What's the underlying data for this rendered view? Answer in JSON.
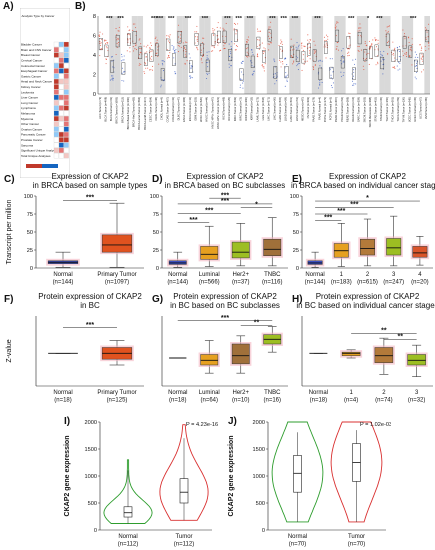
{
  "chart_data": [
    {
      "panel": "A)",
      "type": "table",
      "title": "Analysis Type by Cancer",
      "rows": [
        "Bladder Cancer",
        "Brain and CNS Cancer",
        "Breast Cancer",
        "Cervical Cancer",
        "Colorectal Cancer",
        "Esophageal Cancer",
        "Gastric Cancer",
        "Head and Neck Cancer",
        "Kidney Cancer",
        "Leukemia",
        "Liver Cancer",
        "Lung Cancer",
        "Lymphoma",
        "Melanoma",
        "Myeloma",
        "Other Cancer",
        "Ovarian Cancer",
        "Pancreatic Cancer",
        "Prostate Cancer",
        "Sarcoma",
        "Significant Unique Analyses",
        "Total Unique Analyses"
      ]
    },
    {
      "panel": "B)",
      "type": "scatter",
      "ylabel": "CKAP2 Expression Level (log2 TPM+1)",
      "yticks": [
        "0",
        "2",
        "4",
        "6",
        "8"
      ],
      "xlabels": [
        "ACC.Tumor (n=79)",
        "BLCA.Tumor (n=408)",
        "BLCA.Normal (n=19)",
        "BRCA.Tumor (n=1093)",
        "BRCA.Normal (n=112)",
        "BRCA-Basal.Tumor (n=190)",
        "BRCA-Her2.Tumor (n=82)",
        "BRCA-LumA.Tumor (n=564)",
        "BRCA-LumB.Tumor (n=217)",
        "CESC.Tumor (n=304)",
        "CHOL.Tumor (n=36)",
        "CHOL.Normal (n=9)",
        "COAD.Tumor (n=457)",
        "COAD.Normal (n=41)",
        "DLBC.Tumor (n=47)",
        "ESCA.Tumor (n=184)",
        "ESCA.Normal (n=11)",
        "GBM.Tumor (n=153)",
        "HNSC.Tumor (n=520)",
        "HNSC.Normal (n=44)",
        "HNSC-HPV+.Tumor (n=97)",
        "HNSC-HPV-.Tumor (n=421)",
        "KICH.Tumor (n=66)",
        "KICH.Normal (n=25)",
        "KIRC.Tumor (n=533)",
        "KIRC.Normal (n=72)",
        "KIRP.Tumor (n=290)",
        "KIRP.Normal (n=32)",
        "LAML.Tumor (n=173)",
        "LGG.Tumor (n=516)",
        "LIHC.Tumor (n=371)",
        "LIHC.Normal (n=50)",
        "LUAD.Tumor (n=515)",
        "LUAD.Normal (n=59)",
        "LUSC.Tumor (n=501)",
        "LUSC.Normal (n=51)",
        "MESO.Tumor (n=87)",
        "OV.Tumor (n=303)",
        "PAAD.Tumor (n=178)",
        "PAAD.Normal (n=4)",
        "PCPG.Tumor (n=179)",
        "PCPG.Normal (n=3)",
        "PRAD.Tumor (n=497)",
        "PRAD.Normal (n=52)",
        "READ.Tumor (n=166)",
        "READ.Normal (n=10)",
        "SARC.Tumor (n=259)",
        "SKCM.Tumor (n=103)",
        "SKCM.Metastasis (n=368)",
        "STAD.Tumor (n=415)",
        "STAD.Normal (n=35)",
        "TGCT.Tumor (n=150)",
        "THCA.Tumor (n=501)",
        "THCA.Normal (n=59)",
        "THYM.Tumor (n=120)",
        "UCEC.Tumor (n=545)",
        "UCEC.Normal (n=35)",
        "UCS.Tumor (n=57)",
        "UVM.Tumor (n=80)"
      ],
      "sig_marks": [
        "***",
        "***",
        "***",
        "***",
        "***",
        "***",
        "***",
        "***",
        "***",
        "***",
        "***",
        "***",
        "***",
        "***",
        "***",
        "*",
        "***",
        "***"
      ]
    },
    {
      "panel": "C)",
      "type": "box",
      "title": "Expression of CKAP2\nin BRCA based on sample types",
      "ylabel": "Transcript per million",
      "ylim": [
        0,
        100
      ],
      "yticks": [
        "0",
        "25",
        "50",
        "75",
        "100"
      ],
      "categories": [
        "Normal\n(n=144)",
        "Primary Tumor\n(n=1097)"
      ],
      "colors": [
        "#3b4fc7",
        "#e0521f"
      ],
      "boxes": [
        {
          "min": 1,
          "q1": 6,
          "median": 8,
          "q3": 10,
          "max": 22
        },
        {
          "min": 1,
          "q1": 22,
          "median": 32,
          "q3": 46,
          "max": 90
        }
      ],
      "sig": [
        {
          "label": "***",
          "from": 0,
          "to": 1,
          "y": 94
        }
      ]
    },
    {
      "panel": "D)",
      "type": "box",
      "title": "Expression of CKAP2\nin BRCA based on BC subclasses",
      "ylim": [
        0,
        100
      ],
      "yticks": [
        "0",
        "25",
        "50",
        "75",
        "100"
      ],
      "categories": [
        "Normal\n(n=144)",
        "Luminal\n(n=566)",
        "Her2+\n(n=37)",
        "TNBC\n(n=116)"
      ],
      "colors": [
        "#3b4fc7",
        "#e6a020",
        "#9dbe22",
        "#a0703a"
      ],
      "boxes": [
        {
          "min": 1,
          "q1": 5,
          "median": 7,
          "q3": 10,
          "max": 22
        },
        {
          "min": 2,
          "q1": 12,
          "median": 19,
          "q3": 30,
          "max": 58
        },
        {
          "min": 3,
          "q1": 14,
          "median": 22,
          "q3": 36,
          "max": 62
        },
        {
          "min": 3,
          "q1": 17,
          "median": 26,
          "q3": 40,
          "max": 70
        }
      ],
      "sig": [
        {
          "label": "***",
          "from": 0,
          "to": 1,
          "y": 63
        },
        {
          "label": "***",
          "from": 0,
          "to": 2,
          "y": 76
        },
        {
          "label": "***",
          "from": 0,
          "to": 3,
          "y": 89
        },
        {
          "label": "***",
          "from": 1,
          "to": 2,
          "y": 97
        },
        {
          "label": "*",
          "from": 2,
          "to": 3,
          "y": 84
        }
      ]
    },
    {
      "panel": "E)",
      "type": "box",
      "title": "Expression of CKAP2\nin BRCA based on individual cancer stages",
      "ylim": [
        0,
        100
      ],
      "yticks": [
        "0",
        "25",
        "50",
        "75",
        "100"
      ],
      "categories": [
        "Normal\n(n=144)",
        "1\n(n=183)",
        "2\n(n=615)",
        "3\n(n=247)",
        "4\n(n=20)"
      ],
      "colors": [
        "#3b4fc7",
        "#e6a020",
        "#b37a3a",
        "#9dbe22",
        "#d9542a"
      ],
      "boxes": [
        {
          "min": 1,
          "q1": 5,
          "median": 7,
          "q3": 10,
          "max": 22
        },
        {
          "min": 2,
          "q1": 15,
          "median": 24,
          "q3": 34,
          "max": 62
        },
        {
          "min": 3,
          "q1": 18,
          "median": 27,
          "q3": 40,
          "max": 68
        },
        {
          "min": 3,
          "q1": 18,
          "median": 28,
          "q3": 41,
          "max": 72
        },
        {
          "min": 4,
          "q1": 15,
          "median": 21,
          "q3": 30,
          "max": 44
        }
      ],
      "sig": [
        {
          "label": "***",
          "from": 0,
          "to": 1,
          "y": 66
        },
        {
          "label": "***",
          "from": 0,
          "to": 2,
          "y": 75
        },
        {
          "label": "***",
          "from": 0,
          "to": 3,
          "y": 84
        },
        {
          "label": "*",
          "from": 0,
          "to": 4,
          "y": 93
        }
      ]
    },
    {
      "panel": "F)",
      "type": "box",
      "title": "Protein expression of CKAP2\nin BC",
      "ylabel": "Z-value",
      "ylim": [
        -3,
        3
      ],
      "yticks": [],
      "categories": [
        "Normal\n(n=18)",
        "Primary Tumor\n(n=125)"
      ],
      "colors": [
        "#3b4fc7",
        "#e0521f"
      ],
      "boxes": [
        {
          "min": -0.2,
          "q1": -0.2,
          "median": -0.2,
          "q3": -0.2,
          "max": -0.2
        },
        {
          "min": -1.2,
          "q1": -0.7,
          "median": -0.2,
          "q3": 0.3,
          "max": 0.9
        }
      ],
      "sig": [
        {
          "label": "***",
          "from": 0,
          "to": 1,
          "y": 2.0
        }
      ]
    },
    {
      "panel": "G)",
      "type": "box",
      "title": "Protein expression of CKAP2\nin BC based on BC subclasses",
      "ylim": [
        -3,
        3
      ],
      "yticks": [],
      "categories": [
        "Normal\n(n=18)",
        "Luminal\n(n=64)",
        "Her2+\n(n=10)",
        "TNBC\n(n=16)"
      ],
      "colors": [
        "#3b4fc7",
        "#e6a020",
        "#a0703a",
        "#9dbe22"
      ],
      "boxes": [
        {
          "min": -0.6,
          "q1": -0.6,
          "median": -0.6,
          "q3": -0.6,
          "max": -0.6
        },
        {
          "min": -1.9,
          "q1": -1.2,
          "median": -0.8,
          "q3": -0.3,
          "max": 0.9
        },
        {
          "min": -1.9,
          "q1": -1.1,
          "median": -0.4,
          "q3": 0.6,
          "max": 1.3
        },
        {
          "min": -0.1,
          "q1": 0.6,
          "median": 1.0,
          "q3": 1.4,
          "max": 2.1
        }
      ],
      "sig": [
        {
          "label": "***",
          "from": 0,
          "to": 3,
          "y": 2.6
        },
        {
          "label": "**",
          "from": 2,
          "to": 3,
          "y": 2.2
        }
      ]
    },
    {
      "panel": "H)",
      "type": "box",
      "title": "Protein expression of CKAP2\nin BC based on individual cancer stages",
      "ylim": [
        -3,
        3
      ],
      "yticks": [],
      "categories": [
        "Normal\n(n=18)",
        "1\n(n=4)",
        "2\n(n=74)",
        "3\n(n=32)"
      ],
      "colors": [
        "#3b4fc7",
        "#e6a020",
        "#b37a3a",
        "#9dbe22"
      ],
      "boxes": [
        {
          "min": -0.2,
          "q1": -0.2,
          "median": -0.2,
          "q3": -0.2,
          "max": -0.2
        },
        {
          "min": -0.6,
          "q1": -0.4,
          "median": -0.2,
          "q3": -0.1,
          "max": 0.1
        },
        {
          "min": -2.0,
          "q1": -1.0,
          "median": -0.4,
          "q3": 0.3,
          "max": 1.1
        },
        {
          "min": -2.2,
          "q1": -1.2,
          "median": -0.8,
          "q3": -0.3,
          "max": 0.5
        }
      ],
      "sig": [
        {
          "label": "**",
          "from": 1,
          "to": 3,
          "y": 1.5
        },
        {
          "label": "**",
          "from": 2,
          "to": 3,
          "y": 1.0
        }
      ]
    },
    {
      "panel": "I)",
      "type": "violin",
      "ylabel": "CKAP2 gene expression",
      "ylim": [
        0,
        2000
      ],
      "yticks": [
        "0",
        "500",
        "1000",
        "1500",
        "2000"
      ],
      "categories": [
        "Normal\n(n=112)",
        "Tumor\n(n=112)"
      ],
      "colors": [
        "#2e9d2e",
        "#d93030"
      ],
      "boxes": [
        {
          "min": 120,
          "q1": 240,
          "median": 320,
          "q3": 430,
          "max": 1300
        },
        {
          "min": 180,
          "q1": 500,
          "median": 700,
          "q3": 950,
          "max": 1950
        }
      ],
      "annotation": "P = 4.23e-16"
    },
    {
      "panel": "J)",
      "type": "violin",
      "ylabel": "CKAP2 gene expression",
      "ylim": [
        0,
        2000
      ],
      "yticks": [
        "0",
        "500",
        "1000",
        "1500",
        "2000"
      ],
      "categories": [
        "Normal\n(n=70)",
        "Tumor\n(n=70)"
      ],
      "colors": [
        "#2e9d2e",
        "#d93030"
      ],
      "boxes": [
        {
          "min": 150,
          "q1": 700,
          "median": 1050,
          "q3": 1380,
          "max": 2000
        },
        {
          "min": 150,
          "q1": 900,
          "median": 1250,
          "q3": 1600,
          "max": 2000
        }
      ],
      "annotation": "P = 1.02e-03"
    }
  ]
}
